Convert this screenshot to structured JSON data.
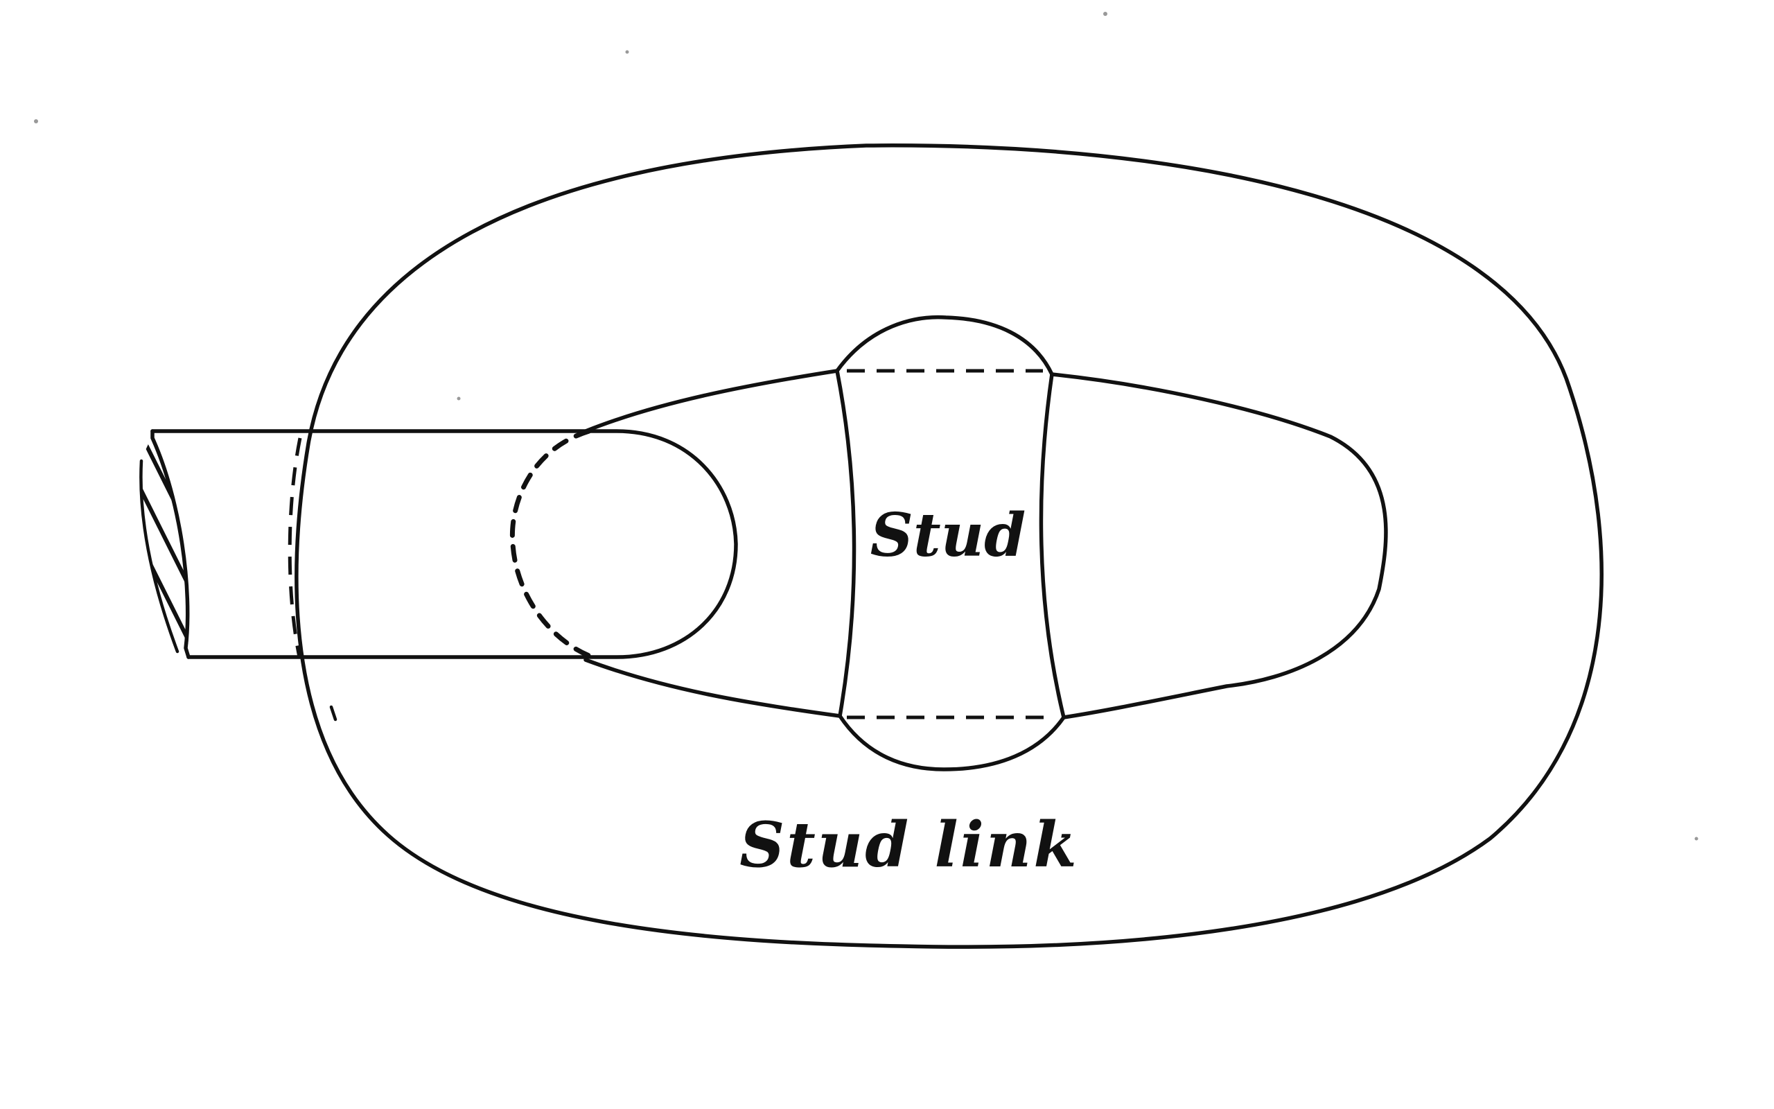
{
  "diagram": {
    "labels": {
      "stud": "Stud",
      "stud_link": "Stud link"
    },
    "colors": {
      "ink": "#111111",
      "background": "#ffffff"
    }
  }
}
